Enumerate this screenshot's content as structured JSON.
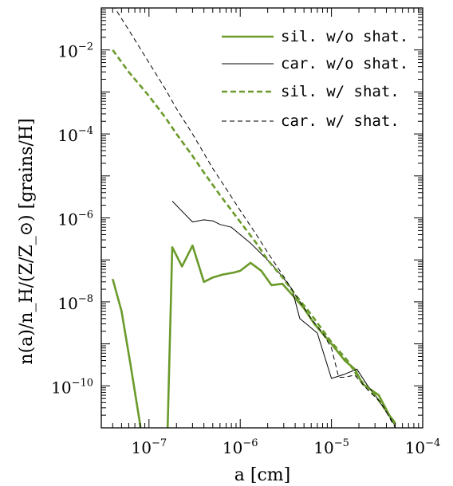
{
  "chart_data": {
    "type": "line",
    "xlabel": "a [cm]",
    "ylabel": "n(a)/n_H/(Z/Z_⊙) [grains/H]",
    "xscale": "log",
    "yscale": "log",
    "xlim": [
      3e-08,
      0.0001
    ],
    "ylim": [
      1e-11,
      0.1
    ],
    "x_ticks": [
      {
        "value": 1e-07,
        "base": "10",
        "exp": "−7"
      },
      {
        "value": 1e-06,
        "base": "10",
        "exp": "−6"
      },
      {
        "value": 1e-05,
        "base": "10",
        "exp": "−5"
      },
      {
        "value": 0.0001,
        "base": "10",
        "exp": "−4"
      }
    ],
    "y_ticks": [
      {
        "value": 1e-10,
        "base": "10",
        "exp": "−10"
      },
      {
        "value": 1e-08,
        "base": "10",
        "exp": "−8"
      },
      {
        "value": 1e-06,
        "base": "10",
        "exp": "−6"
      },
      {
        "value": 0.0001,
        "base": "10",
        "exp": "−4"
      },
      {
        "value": 0.01,
        "base": "10",
        "exp": "−2"
      }
    ],
    "legend_position": "top-right",
    "series": [
      {
        "name": "sil. w/o shat.",
        "color": "#6a9a2a",
        "style": "solid-thick",
        "points": [
          [
            4e-08,
            3.5e-08
          ],
          [
            5e-08,
            6e-09
          ],
          [
            6.3e-08,
            3e-10
          ],
          [
            8e-08,
            1.2e-11
          ],
          [
            1e-07,
            3e-13
          ],
          [
            1.5e-07,
            1e-12
          ],
          [
            1.6e-07,
            1e-11
          ],
          [
            1.8e-07,
            2e-07
          ],
          [
            2.3e-07,
            7e-08
          ],
          [
            3e-07,
            2.2e-07
          ],
          [
            4e-07,
            3e-08
          ],
          [
            5e-07,
            3.8e-08
          ],
          [
            6.5e-07,
            4.5e-08
          ],
          [
            8.5e-07,
            5e-08
          ],
          [
            1e-06,
            5.5e-08
          ],
          [
            1.3e-06,
            8.5e-08
          ],
          [
            1.7e-06,
            5.5e-08
          ],
          [
            2.2e-06,
            2.5e-08
          ],
          [
            2.9e-06,
            2.7e-08
          ],
          [
            3.8e-06,
            1.4e-08
          ],
          [
            5e-06,
            7e-09
          ],
          [
            6.5e-06,
            3e-09
          ],
          [
            1e-05,
            1e-09
          ],
          [
            1.4e-05,
            4e-10
          ],
          [
            1.8e-05,
            2.5e-10
          ],
          [
            2.2e-05,
            1.1e-10
          ],
          [
            3.3e-05,
            6e-11
          ],
          [
            4.3e-05,
            2e-11
          ],
          [
            5e-05,
            1.3e-11
          ]
        ]
      },
      {
        "name": "car. w/o shat.",
        "color": "#000000",
        "style": "solid-thin",
        "points": [
          [
            1.8e-07,
            2.5e-06
          ],
          [
            2.5e-07,
            1.2e-06
          ],
          [
            3e-07,
            8e-07
          ],
          [
            4e-07,
            9e-07
          ],
          [
            5e-07,
            8.5e-07
          ],
          [
            6e-07,
            7e-07
          ],
          [
            8e-07,
            6e-07
          ],
          [
            1e-06,
            4e-07
          ],
          [
            1.3e-06,
            2.5e-07
          ],
          [
            1.7e-06,
            1.4e-07
          ],
          [
            2.2e-06,
            8e-08
          ],
          [
            2.9e-06,
            4e-08
          ],
          [
            3.7e-06,
            2e-08
          ],
          [
            4.5e-06,
            4e-09
          ],
          [
            5.5e-06,
            2.8e-09
          ],
          [
            7e-06,
            1.8e-09
          ],
          [
            1e-05,
            1.5e-10
          ],
          [
            1.4e-05,
            1.9e-10
          ],
          [
            1.9e-05,
            2.5e-10
          ],
          [
            2.5e-05,
            1e-10
          ],
          [
            3.2e-05,
            5e-11
          ],
          [
            4.2e-05,
            2e-11
          ],
          [
            5e-05,
            1.1e-11
          ]
        ]
      },
      {
        "name": "sil. w/ shat.",
        "color": "#6a9a2a",
        "style": "dashed-thick",
        "points": [
          [
            4e-08,
            0.01
          ],
          [
            6e-08,
            0.003
          ],
          [
            1e-07,
            0.0008
          ],
          [
            1.5e-07,
            0.00025
          ],
          [
            2e-07,
            0.0001
          ],
          [
            3e-07,
            3e-05
          ],
          [
            4e-07,
            1.2e-05
          ],
          [
            6e-07,
            3.5e-06
          ],
          [
            1e-06,
            8e-07
          ],
          [
            1.5e-06,
            2.5e-07
          ],
          [
            2e-06,
            1e-07
          ],
          [
            3e-06,
            3.5e-08
          ],
          [
            4e-06,
            1.5e-08
          ],
          [
            6e-06,
            5e-09
          ],
          [
            1e-05,
            1.1e-09
          ],
          [
            1.5e-05,
            4e-10
          ],
          [
            2e-05,
            1.5e-10
          ],
          [
            3e-05,
            6e-11
          ],
          [
            4e-05,
            2.5e-11
          ],
          [
            5e-05,
            1.2e-11
          ]
        ]
      },
      {
        "name": "car. w/ shat.",
        "color": "#000000",
        "style": "dashed-thin",
        "points": [
          [
            4e-08,
            0.12
          ],
          [
            6e-08,
            0.03
          ],
          [
            1e-07,
            0.005
          ],
          [
            1.5e-07,
            0.0012
          ],
          [
            2e-07,
            0.0004
          ],
          [
            3e-07,
            0.0001
          ],
          [
            5e-07,
            1.5e-05
          ],
          [
            7e-07,
            5e-06
          ],
          [
            1e-06,
            1.5e-06
          ],
          [
            1.5e-06,
            4e-07
          ],
          [
            2e-06,
            1.5e-07
          ],
          [
            3e-06,
            4e-08
          ],
          [
            4e-06,
            1.5e-08
          ],
          [
            6e-06,
            4e-09
          ],
          [
            8e-06,
            1.8e-09
          ],
          [
            1e-05,
            8e-10
          ],
          [
            1.2e-05,
            1.6e-10
          ],
          [
            1.4e-05,
            1.6e-10
          ],
          [
            1.8e-05,
            1.8e-10
          ],
          [
            2.5e-05,
            8e-11
          ],
          [
            3.5e-05,
            4e-11
          ],
          [
            4.5e-05,
            1.5e-11
          ],
          [
            5e-05,
            1e-11
          ]
        ]
      }
    ]
  }
}
